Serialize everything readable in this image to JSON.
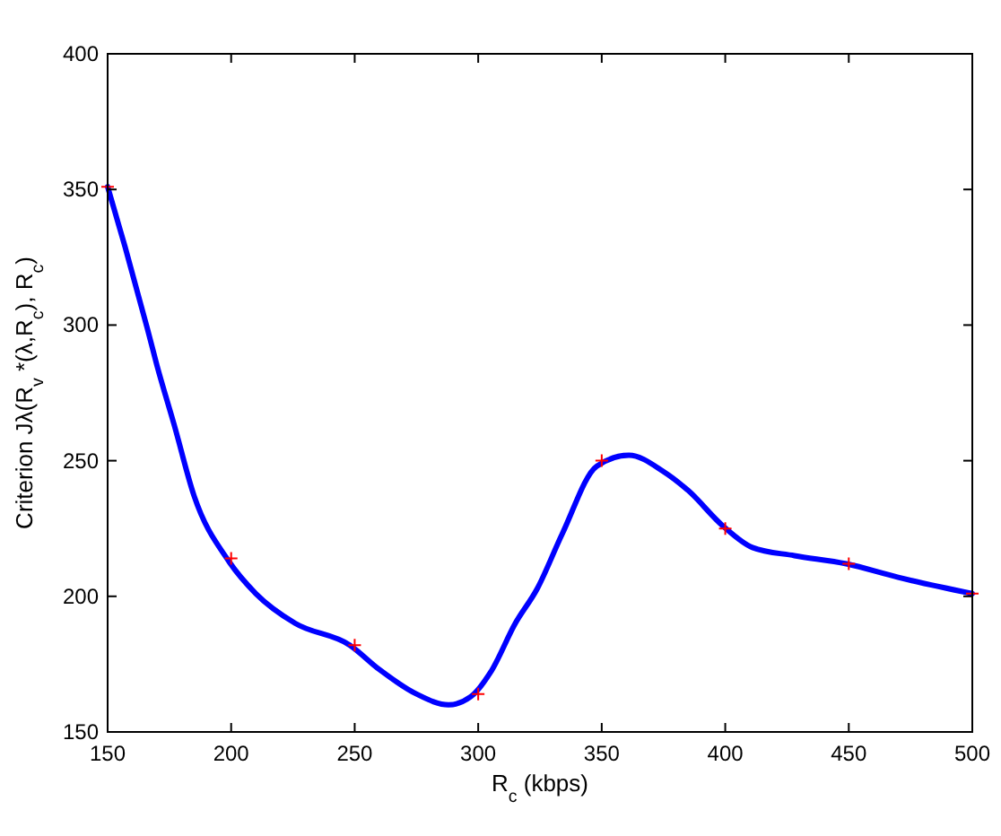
{
  "chart_data": {
    "type": "line",
    "xlabel": "R$_{c}$ (kbps)",
    "ylabel": "Criterion Jλ(R$_{v}$ *(λ,R$_{c}$), R$_{c}$)",
    "xlim": [
      150,
      500
    ],
    "xticks": [
      150,
      200,
      250,
      300,
      350,
      400,
      450,
      500
    ],
    "ylim": [
      150,
      400
    ],
    "yticks": [
      150,
      200,
      250,
      300,
      350,
      400
    ],
    "grid": false,
    "line_style": "solid",
    "series": [
      {
        "color": "#0000ff",
        "marker": "none",
        "x": [
          150,
          157,
          166,
          170,
          177,
          185,
          199,
          210,
          226,
          248,
          260,
          275,
          288,
          297,
          305,
          315,
          324,
          334,
          348,
          361,
          375,
          385,
          399,
          411,
          428,
          449,
          470,
          500
        ],
        "values": [
          351,
          329,
          299,
          285,
          263,
          237,
          213,
          201,
          190,
          182,
          173,
          164,
          160,
          163,
          172,
          190,
          203,
          223,
          248,
          252,
          246,
          239,
          226,
          218,
          215,
          212,
          207,
          201
        ]
      },
      {
        "type": "scatter",
        "color": "#ff0000",
        "marker": "cross",
        "x": [
          150,
          200,
          250,
          300,
          350,
          400,
          450,
          500
        ],
        "values": [
          351,
          214,
          182,
          164,
          250,
          225,
          212,
          201
        ]
      }
    ]
  }
}
